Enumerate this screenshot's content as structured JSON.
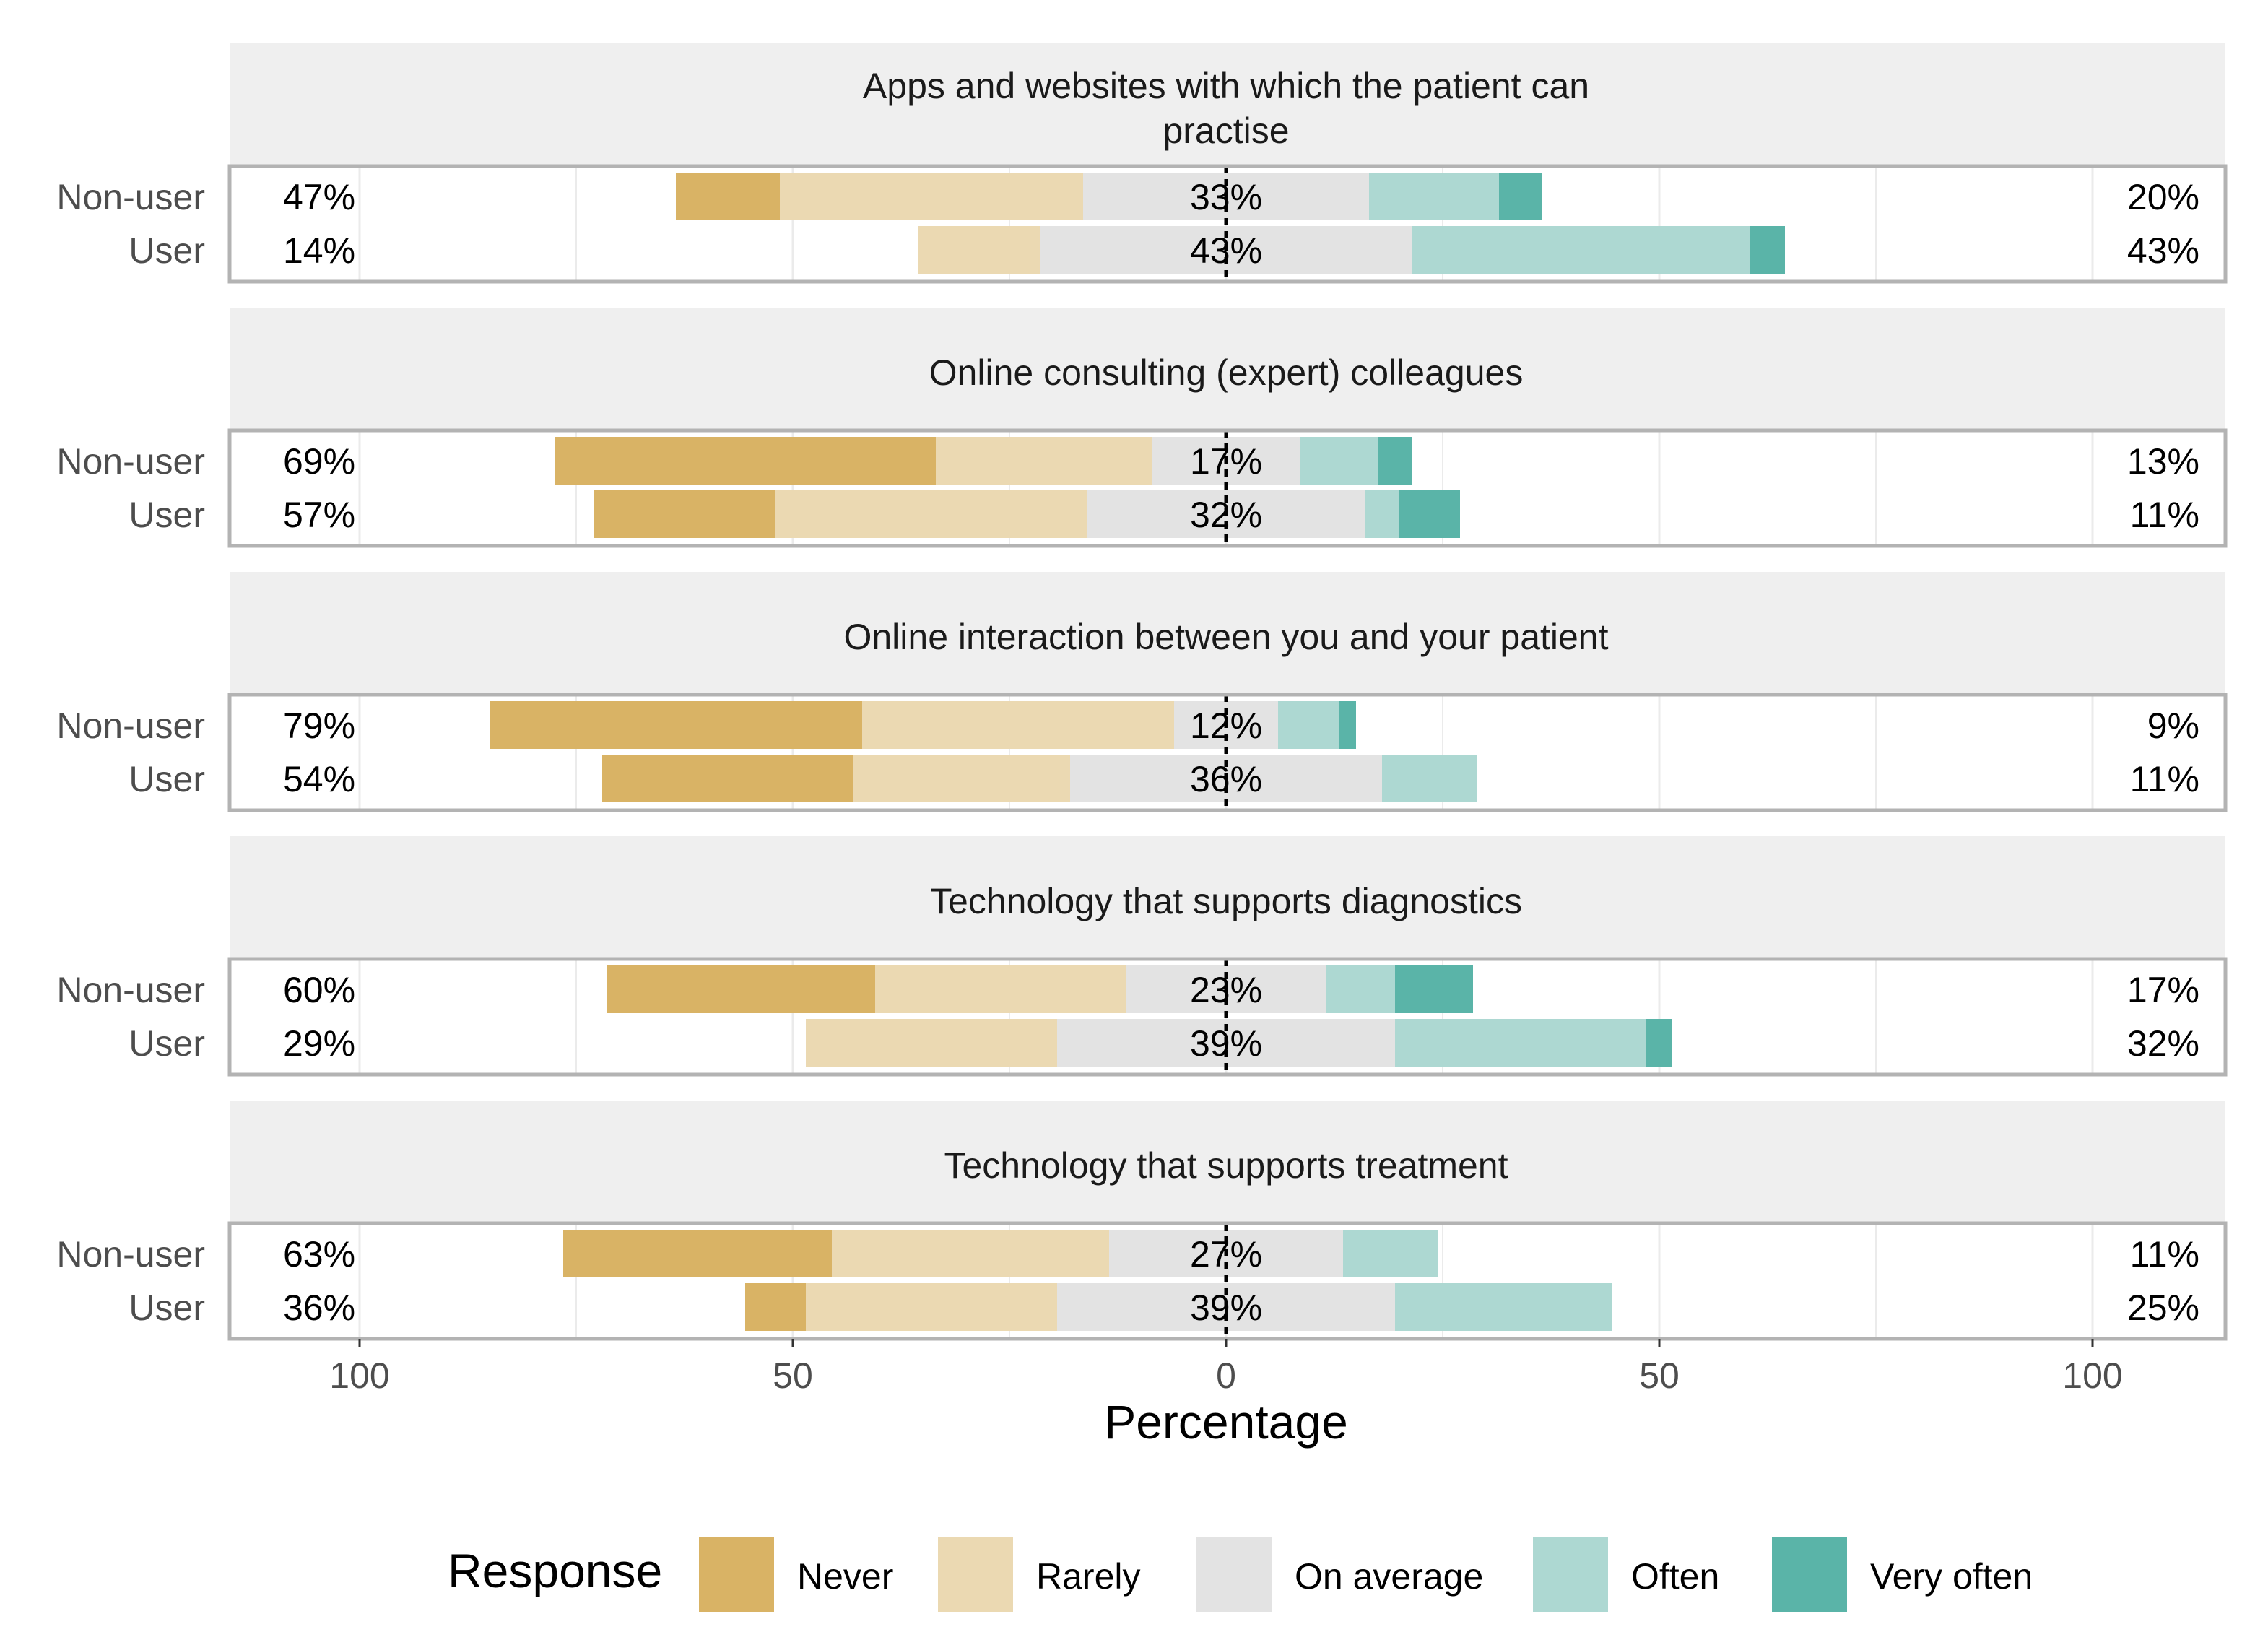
{
  "chart_data": {
    "type": "bar",
    "orientation": "horizontal",
    "stacked": true,
    "diverging": true,
    "xlabel": "Percentage",
    "x_ticks": [
      100,
      50,
      0,
      50,
      100
    ],
    "xlim": [
      -100,
      100
    ],
    "grid": true,
    "legend": {
      "title": "Response",
      "position": "bottom",
      "entries": [
        "Never",
        "Rarely",
        "On average",
        "Often",
        "Very often"
      ]
    },
    "colors": {
      "Never": "#d9b365",
      "Rarely": "#ebd9b2",
      "On average": "#e3e3e3",
      "Often": "#add8d2",
      "Very often": "#5ab4a8"
    },
    "panels": [
      {
        "title": "Apps and websites with which the patient can practise",
        "title_lines": [
          "Apps and websites with which the patient can",
          "practise"
        ],
        "rows": [
          {
            "label": "Non-user",
            "values": {
              "Never": 12,
              "Rarely": 35,
              "On average": 33,
              "Often": 15,
              "Very often": 5
            },
            "left_label": "47%",
            "center_label": "33%",
            "right_label": "20%"
          },
          {
            "label": "User",
            "values": {
              "Never": 0,
              "Rarely": 14,
              "On average": 43,
              "Often": 39,
              "Very often": 4
            },
            "left_label": "14%",
            "center_label": "43%",
            "right_label": "43%"
          }
        ]
      },
      {
        "title": "Online consulting (expert) colleagues",
        "title_lines": [
          "Online consulting (expert) colleagues"
        ],
        "rows": [
          {
            "label": "Non-user",
            "values": {
              "Never": 44,
              "Rarely": 25,
              "On average": 17,
              "Often": 9,
              "Very often": 4
            },
            "left_label": "69%",
            "center_label": "17%",
            "right_label": "13%"
          },
          {
            "label": "User",
            "values": {
              "Never": 21,
              "Rarely": 36,
              "On average": 32,
              "Often": 4,
              "Very often": 7
            },
            "left_label": "57%",
            "center_label": "32%",
            "right_label": "11%"
          }
        ]
      },
      {
        "title": "Online interaction between you and your patient",
        "title_lines": [
          "Online interaction between you and your patient"
        ],
        "rows": [
          {
            "label": "Non-user",
            "values": {
              "Never": 43,
              "Rarely": 36,
              "On average": 12,
              "Often": 7,
              "Very often": 2
            },
            "left_label": "79%",
            "center_label": "12%",
            "right_label": "9%"
          },
          {
            "label": "User",
            "values": {
              "Never": 29,
              "Rarely": 25,
              "On average": 36,
              "Often": 11,
              "Very often": 0
            },
            "left_label": "54%",
            "center_label": "36%",
            "right_label": "11%"
          }
        ]
      },
      {
        "title": "Technology that supports diagnostics",
        "title_lines": [
          "Technology that supports diagnostics"
        ],
        "rows": [
          {
            "label": "Non-user",
            "values": {
              "Never": 31,
              "Rarely": 29,
              "On average": 23,
              "Often": 8,
              "Very often": 9
            },
            "left_label": "60%",
            "center_label": "23%",
            "right_label": "17%"
          },
          {
            "label": "User",
            "values": {
              "Never": 0,
              "Rarely": 29,
              "On average": 39,
              "Often": 29,
              "Very often": 3
            },
            "left_label": "29%",
            "center_label": "39%",
            "right_label": "32%"
          }
        ]
      },
      {
        "title": "Technology that supports treatment",
        "title_lines": [
          "Technology that supports treatment"
        ],
        "rows": [
          {
            "label": "Non-user",
            "values": {
              "Never": 31,
              "Rarely": 32,
              "On average": 27,
              "Often": 11,
              "Very often": 0
            },
            "left_label": "63%",
            "center_label": "27%",
            "right_label": "11%"
          },
          {
            "label": "User",
            "values": {
              "Never": 7,
              "Rarely": 29,
              "On average": 39,
              "Often": 25,
              "Very often": 0
            },
            "left_label": "36%",
            "center_label": "39%",
            "right_label": "25%"
          }
        ]
      }
    ]
  }
}
